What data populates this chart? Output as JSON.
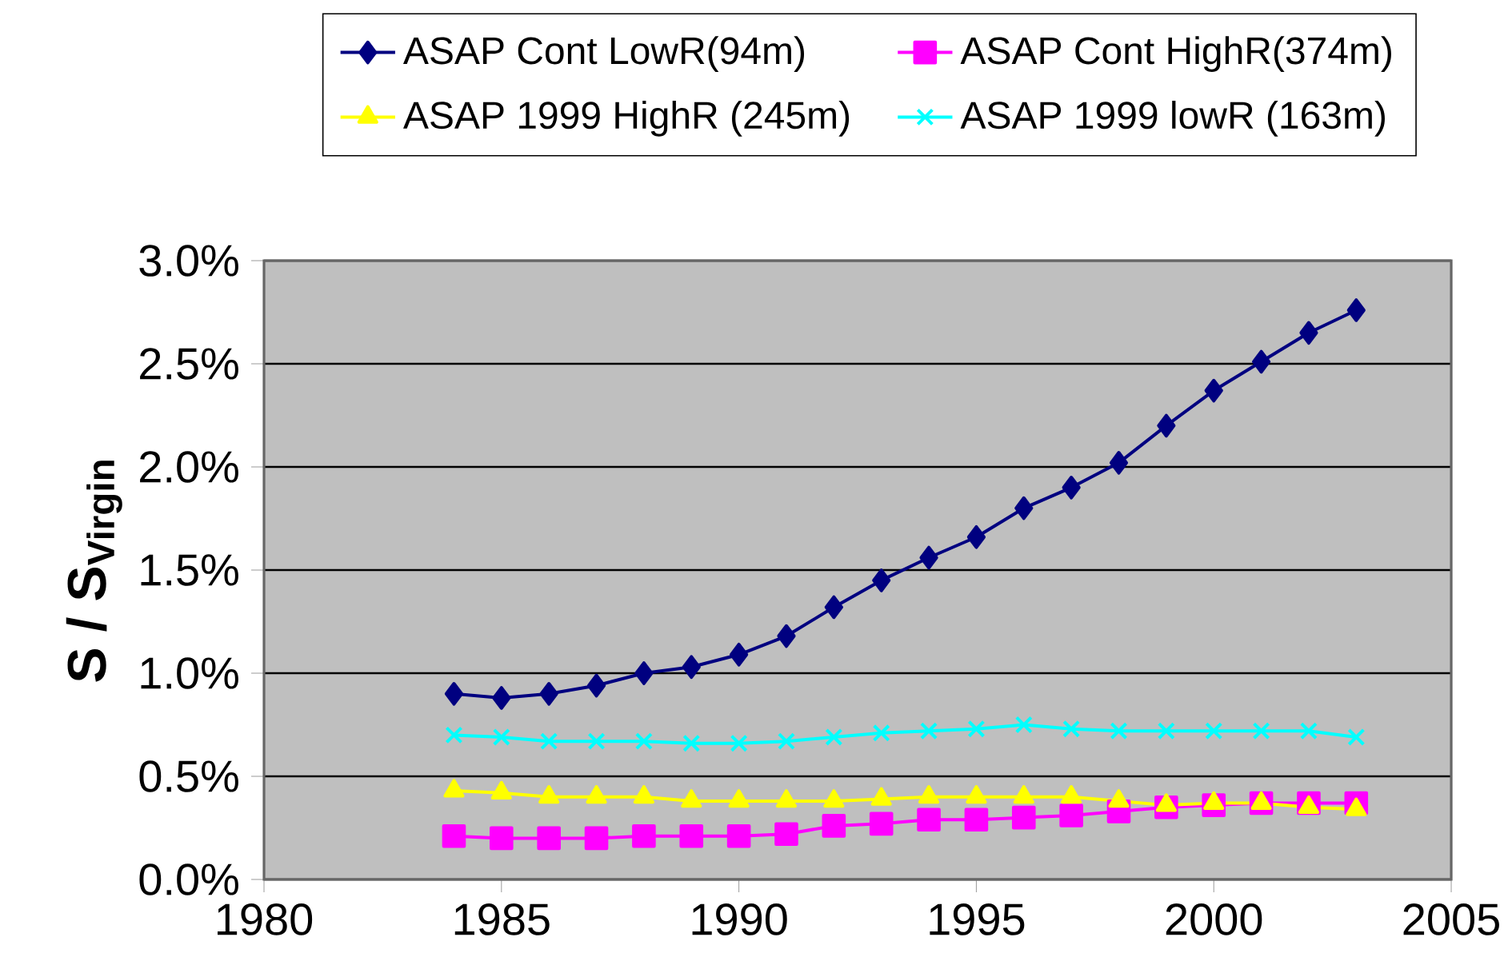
{
  "chart_data": {
    "type": "line",
    "ylabel": "S / S$_{Virgin}$",
    "x": [
      1984,
      1985,
      1986,
      1987,
      1988,
      1989,
      1990,
      1991,
      1992,
      1993,
      1994,
      1995,
      1996,
      1997,
      1998,
      1999,
      2000,
      2001,
      2002,
      2003
    ],
    "series": [
      {
        "name": "ASAP Cont  LowR(94m)",
        "color": "#000080",
        "marker": "diamond",
        "values": [
          0.9,
          0.88,
          0.9,
          0.94,
          1.0,
          1.03,
          1.09,
          1.18,
          1.32,
          1.45,
          1.56,
          1.66,
          1.8,
          1.9,
          2.02,
          2.2,
          2.37,
          2.51,
          2.65,
          2.76
        ]
      },
      {
        "name": "ASAP Cont HighR(374m)",
        "color": "#ff00ff",
        "marker": "square",
        "values": [
          0.21,
          0.2,
          0.2,
          0.2,
          0.21,
          0.21,
          0.21,
          0.22,
          0.26,
          0.27,
          0.29,
          0.29,
          0.3,
          0.31,
          0.33,
          0.35,
          0.36,
          0.37,
          0.37,
          0.37
        ]
      },
      {
        "name": "ASAP 1999 HighR (245m)",
        "color": "#ffff00",
        "marker": "triangle",
        "values": [
          0.43,
          0.42,
          0.4,
          0.4,
          0.4,
          0.38,
          0.38,
          0.38,
          0.38,
          0.39,
          0.4,
          0.4,
          0.4,
          0.4,
          0.38,
          0.36,
          0.37,
          0.37,
          0.35,
          0.34
        ]
      },
      {
        "name": "ASAP 1999 lowR (163m)",
        "color": "#00ffff",
        "marker": "cross",
        "values": [
          0.7,
          0.69,
          0.67,
          0.67,
          0.67,
          0.66,
          0.66,
          0.67,
          0.69,
          0.71,
          0.72,
          0.73,
          0.75,
          0.73,
          0.72,
          0.72,
          0.72,
          0.72,
          0.72,
          0.69
        ]
      }
    ],
    "xlim": [
      1980,
      2005
    ],
    "xticks": [
      1980,
      1985,
      1990,
      1995,
      2000,
      2005
    ],
    "ylim": [
      0,
      3.0
    ],
    "yticks": [
      {
        "value": 0,
        "label": "0.0%"
      },
      {
        "value": 0.5,
        "label": "0.5%"
      },
      {
        "value": 1.0,
        "label": "1.0%"
      },
      {
        "value": 1.5,
        "label": "1.5%"
      },
      {
        "value": 2.0,
        "label": "2.0%"
      },
      {
        "value": 2.5,
        "label": "2.5%"
      },
      {
        "value": 3.0,
        "label": "3.0%"
      }
    ],
    "grid": "y",
    "legend": "top",
    "line_style": "solid"
  }
}
